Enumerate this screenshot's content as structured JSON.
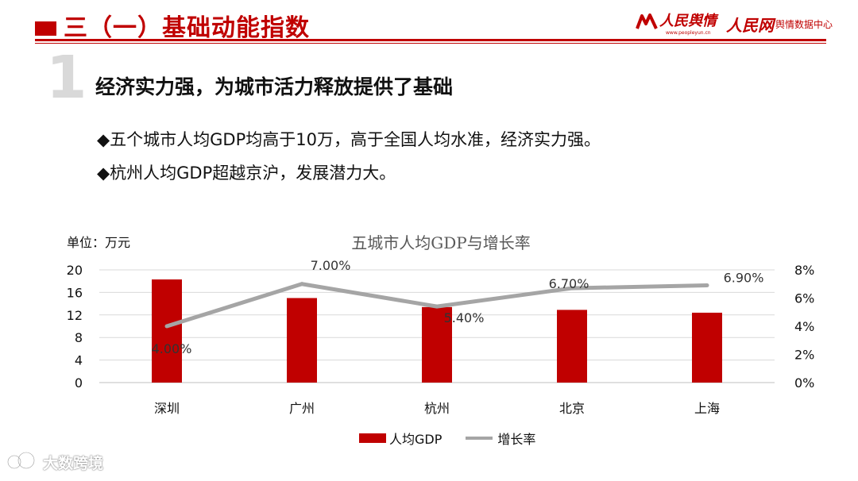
{
  "header": {
    "title": "三（一）基础动能指数",
    "logo1_text": "人民舆情",
    "logo1_sub": "www.peopleyun.cn",
    "logo2_text": "人民网",
    "logo2_sub": "舆情数据中心"
  },
  "section": {
    "number": "1",
    "subtitle": "经济实力强，为城市活力释放提供了基础",
    "bullets": [
      "◆五个城市人均GDP均高于10万，高于全国人均水准，经济实力强。",
      "◆杭州人均GDP超越京沪，发展潜力大。"
    ]
  },
  "chart_data": {
    "type": "bar",
    "title": "五城市人均GDP与增长率",
    "unit_label": "单位：万元",
    "categories": [
      "深圳",
      "广州",
      "杭州",
      "北京",
      "上海"
    ],
    "series": [
      {
        "name": "人均GDP",
        "kind": "bar",
        "axis": "left",
        "color": "#c00000",
        "values": [
          18.3,
          15.0,
          13.4,
          12.9,
          12.4
        ]
      },
      {
        "name": "增长率",
        "kind": "line",
        "axis": "right",
        "color": "#a5a5a5",
        "values": [
          4.0,
          7.0,
          5.4,
          6.7,
          6.9
        ],
        "data_labels": [
          "4.00%",
          "7.00%",
          "5.40%",
          "6.70%",
          "6.90%"
        ]
      }
    ],
    "y_left": {
      "min": 0,
      "max": 20,
      "ticks": [
        "0",
        "4",
        "8",
        "12",
        "16",
        "20"
      ]
    },
    "y_right": {
      "min": 0,
      "max": 8,
      "ticks": [
        "0%",
        "2%",
        "4%",
        "6%",
        "8%"
      ]
    },
    "grid": true,
    "legend_position": "bottom"
  },
  "watermark": {
    "text": "大数跨境"
  }
}
